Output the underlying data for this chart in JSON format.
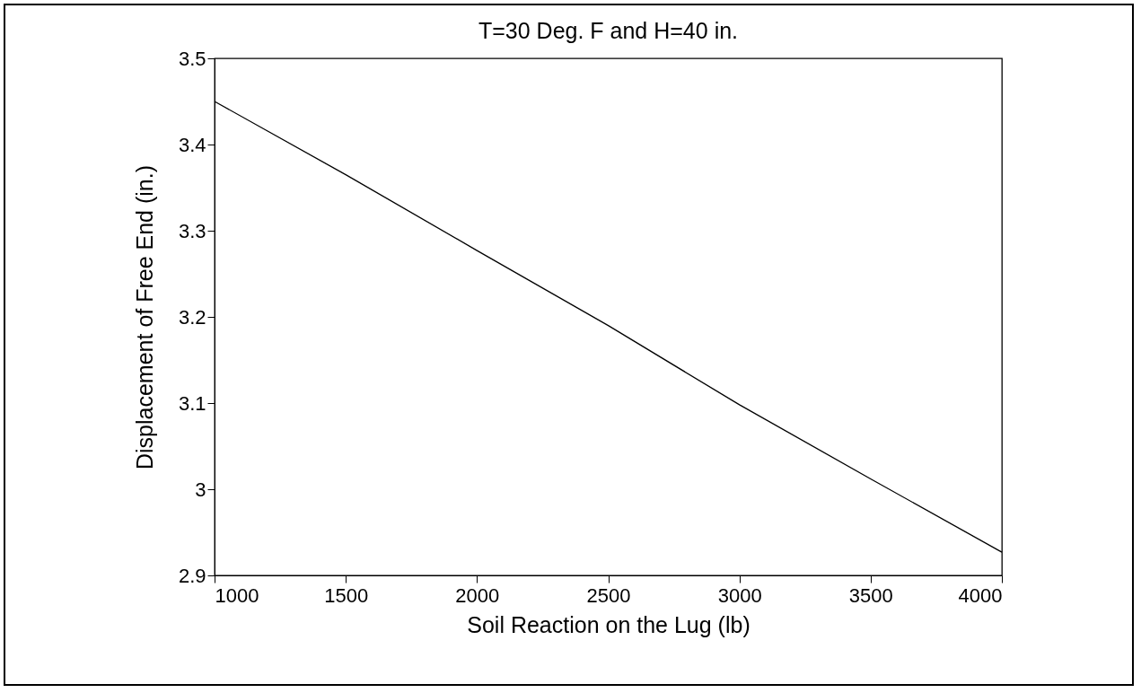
{
  "chart_data": {
    "type": "line",
    "title": "T=30 Deg. F and H=40 in.",
    "xlabel": "Soil Reaction on the Lug (lb)",
    "ylabel": "Displacement of Free End (in.)",
    "x": [
      1000,
      1500,
      2000,
      2500,
      3000,
      3500,
      4000
    ],
    "series": [
      {
        "color": "#000000",
        "values": [
          3.45,
          3.365,
          3.277,
          3.19,
          3.098,
          3.012,
          2.927
        ]
      }
    ],
    "xlim": [
      1000,
      4000
    ],
    "xticks": [
      1000,
      1500,
      2000,
      2500,
      3000,
      3500,
      4000
    ],
    "ylim": [
      2.9,
      3.5
    ],
    "yticks": [
      2.9,
      3,
      3.1,
      3.2,
      3.3,
      3.4,
      3.5
    ],
    "grid": false,
    "legend": false,
    "marker": "none",
    "line_style": "solid"
  }
}
